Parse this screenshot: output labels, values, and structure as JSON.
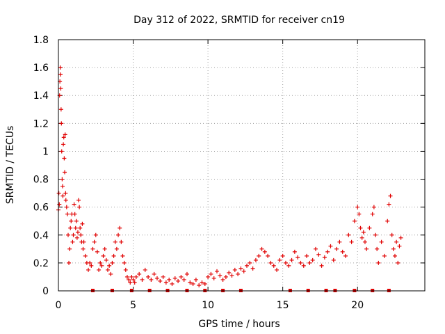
{
  "chart_data": {
    "type": "scatter",
    "title": "Day 312 of 2022, SRMTID for receiver cn19",
    "xlabel": "GPS time / hours",
    "ylabel": "SRMTID / TECUs",
    "xlim": [
      0,
      24.5
    ],
    "ylim": [
      0,
      1.8
    ],
    "x_ticks": [
      0,
      5,
      10,
      15,
      20
    ],
    "x_tick_labels": [
      "0",
      "5",
      "10",
      "15",
      "20"
    ],
    "y_ticks": [
      0,
      0.2,
      0.4,
      0.6,
      0.8,
      1.0,
      1.2,
      1.4,
      1.6,
      1.8
    ],
    "y_tick_labels": [
      "0",
      "0.2",
      "0.4",
      "0.6",
      "0.8",
      "1",
      "1.2",
      "1.4",
      "1.6",
      "1.8"
    ],
    "grid": true,
    "marker": "plus",
    "color": "#e00000",
    "series": [
      {
        "name": "SRMTID",
        "points": [
          [
            0.0,
            0.58
          ],
          [
            0.03,
            0.7
          ],
          [
            0.06,
            0.62
          ],
          [
            0.08,
            1.4
          ],
          [
            0.1,
            1.5
          ],
          [
            0.12,
            1.6
          ],
          [
            0.14,
            1.55
          ],
          [
            0.16,
            1.45
          ],
          [
            0.18,
            1.3
          ],
          [
            0.2,
            1.2
          ],
          [
            0.22,
            1.0
          ],
          [
            0.25,
            0.8
          ],
          [
            0.28,
            0.75
          ],
          [
            0.3,
            0.68
          ],
          [
            0.33,
            1.05
          ],
          [
            0.36,
            1.1
          ],
          [
            0.39,
            0.95
          ],
          [
            0.42,
            0.85
          ],
          [
            0.45,
            1.12
          ],
          [
            0.48,
            0.7
          ],
          [
            0.5,
            0.65
          ],
          [
            0.55,
            0.6
          ],
          [
            0.6,
            0.55
          ],
          [
            0.65,
            0.4
          ],
          [
            0.7,
            0.2
          ],
          [
            0.75,
            0.3
          ],
          [
            0.8,
            0.45
          ],
          [
            0.85,
            0.5
          ],
          [
            0.9,
            0.55
          ],
          [
            0.95,
            0.35
          ],
          [
            1.0,
            0.4
          ],
          [
            1.05,
            0.62
          ],
          [
            1.1,
            0.55
          ],
          [
            1.15,
            0.45
          ],
          [
            1.2,
            0.5
          ],
          [
            1.25,
            0.38
          ],
          [
            1.3,
            0.42
          ],
          [
            1.35,
            0.65
          ],
          [
            1.4,
            0.6
          ],
          [
            1.45,
            0.45
          ],
          [
            1.5,
            0.4
          ],
          [
            1.55,
            0.35
          ],
          [
            1.6,
            0.48
          ],
          [
            1.65,
            0.3
          ],
          [
            1.7,
            0.35
          ],
          [
            1.8,
            0.25
          ],
          [
            1.9,
            0.2
          ],
          [
            2.0,
            0.15
          ],
          [
            2.1,
            0.2
          ],
          [
            2.2,
            0.18
          ],
          [
            2.3,
            0.3
          ],
          [
            2.4,
            0.35
          ],
          [
            2.5,
            0.4
          ],
          [
            2.6,
            0.28
          ],
          [
            2.7,
            0.15
          ],
          [
            2.8,
            0.2
          ],
          [
            2.9,
            0.18
          ],
          [
            3.0,
            0.25
          ],
          [
            3.1,
            0.3
          ],
          [
            3.2,
            0.22
          ],
          [
            3.3,
            0.15
          ],
          [
            3.4,
            0.18
          ],
          [
            3.5,
            0.12
          ],
          [
            3.6,
            0.2
          ],
          [
            3.7,
            0.25
          ],
          [
            3.8,
            0.35
          ],
          [
            3.9,
            0.3
          ],
          [
            4.0,
            0.4
          ],
          [
            4.1,
            0.45
          ],
          [
            4.2,
            0.35
          ],
          [
            4.3,
            0.25
          ],
          [
            4.4,
            0.2
          ],
          [
            4.5,
            0.15
          ],
          [
            4.6,
            0.1
          ],
          [
            4.7,
            0.08
          ],
          [
            4.8,
            0.06
          ],
          [
            4.9,
            0.1
          ],
          [
            5.0,
            0.08
          ],
          [
            5.1,
            0.06
          ],
          [
            5.2,
            0.1
          ],
          [
            5.4,
            0.12
          ],
          [
            5.6,
            0.08
          ],
          [
            5.8,
            0.15
          ],
          [
            6.0,
            0.1
          ],
          [
            6.2,
            0.08
          ],
          [
            6.4,
            0.12
          ],
          [
            6.6,
            0.09
          ],
          [
            6.8,
            0.07
          ],
          [
            7.0,
            0.1
          ],
          [
            7.2,
            0.06
          ],
          [
            7.4,
            0.08
          ],
          [
            7.6,
            0.05
          ],
          [
            7.8,
            0.09
          ],
          [
            8.0,
            0.07
          ],
          [
            8.2,
            0.1
          ],
          [
            8.4,
            0.08
          ],
          [
            8.6,
            0.12
          ],
          [
            8.8,
            0.06
          ],
          [
            9.0,
            0.05
          ],
          [
            9.2,
            0.08
          ],
          [
            9.4,
            0.04
          ],
          [
            9.6,
            0.06
          ],
          [
            9.8,
            0.05
          ],
          [
            10.0,
            0.1
          ],
          [
            10.2,
            0.12
          ],
          [
            10.4,
            0.09
          ],
          [
            10.6,
            0.14
          ],
          [
            10.8,
            0.11
          ],
          [
            11.0,
            0.08
          ],
          [
            11.2,
            0.1
          ],
          [
            11.4,
            0.13
          ],
          [
            11.6,
            0.11
          ],
          [
            11.8,
            0.15
          ],
          [
            12.0,
            0.12
          ],
          [
            12.2,
            0.16
          ],
          [
            12.4,
            0.14
          ],
          [
            12.6,
            0.18
          ],
          [
            12.8,
            0.2
          ],
          [
            13.0,
            0.16
          ],
          [
            13.2,
            0.22
          ],
          [
            13.4,
            0.25
          ],
          [
            13.6,
            0.3
          ],
          [
            13.8,
            0.28
          ],
          [
            14.0,
            0.25
          ],
          [
            14.2,
            0.2
          ],
          [
            14.4,
            0.18
          ],
          [
            14.6,
            0.15
          ],
          [
            14.8,
            0.22
          ],
          [
            15.0,
            0.25
          ],
          [
            15.2,
            0.2
          ],
          [
            15.4,
            0.18
          ],
          [
            15.6,
            0.22
          ],
          [
            15.8,
            0.28
          ],
          [
            16.0,
            0.24
          ],
          [
            16.2,
            0.2
          ],
          [
            16.4,
            0.18
          ],
          [
            16.6,
            0.25
          ],
          [
            16.8,
            0.2
          ],
          [
            17.0,
            0.22
          ],
          [
            17.2,
            0.3
          ],
          [
            17.4,
            0.26
          ],
          [
            17.6,
            0.18
          ],
          [
            17.8,
            0.24
          ],
          [
            18.0,
            0.28
          ],
          [
            18.2,
            0.32
          ],
          [
            18.4,
            0.22
          ],
          [
            18.6,
            0.3
          ],
          [
            18.8,
            0.35
          ],
          [
            19.0,
            0.28
          ],
          [
            19.2,
            0.25
          ],
          [
            19.4,
            0.4
          ],
          [
            19.6,
            0.35
          ],
          [
            19.8,
            0.5
          ],
          [
            20.0,
            0.6
          ],
          [
            20.1,
            0.55
          ],
          [
            20.2,
            0.45
          ],
          [
            20.3,
            0.38
          ],
          [
            20.4,
            0.42
          ],
          [
            20.5,
            0.35
          ],
          [
            20.6,
            0.3
          ],
          [
            20.8,
            0.45
          ],
          [
            21.0,
            0.55
          ],
          [
            21.1,
            0.6
          ],
          [
            21.2,
            0.4
          ],
          [
            21.3,
            0.3
          ],
          [
            21.4,
            0.2
          ],
          [
            21.6,
            0.35
          ],
          [
            21.8,
            0.25
          ],
          [
            22.0,
            0.5
          ],
          [
            22.1,
            0.62
          ],
          [
            22.2,
            0.68
          ],
          [
            22.3,
            0.4
          ],
          [
            22.4,
            0.3
          ],
          [
            22.5,
            0.25
          ],
          [
            22.6,
            0.35
          ],
          [
            22.7,
            0.2
          ],
          [
            22.8,
            0.32
          ],
          [
            22.9,
            0.38
          ]
        ]
      }
    ],
    "zero_markers_x": [
      2.3,
      3.6,
      4.9,
      6.1,
      7.3,
      8.6,
      9.8,
      11.0,
      12.2,
      15.5,
      16.7,
      17.9,
      18.5,
      19.8,
      21.0,
      22.1
    ]
  }
}
